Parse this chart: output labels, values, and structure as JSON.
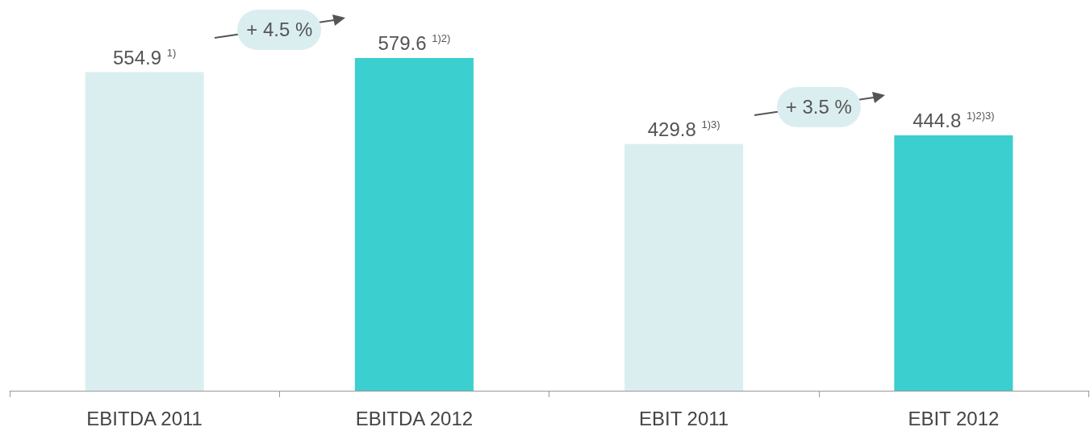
{
  "chart_data": {
    "type": "bar",
    "categories": [
      "EBITDA 2011",
      "EBITDA 2012",
      "EBIT 2011",
      "EBIT 2012"
    ],
    "values": [
      554.9,
      579.6,
      429.8,
      444.8
    ],
    "colors": [
      "#daeef0",
      "#3ccfcf",
      "#daeef0",
      "#3ccfcf"
    ],
    "value_labels": [
      "554.9 $^{1)}$",
      "579.6 $^{1)2)}$",
      "429.8 $^{1)3)}$",
      "444.8 $^{1)2)3)}$"
    ],
    "annotations": [
      "+ 4.5 %",
      "+ 3.5 %"
    ]
  }
}
